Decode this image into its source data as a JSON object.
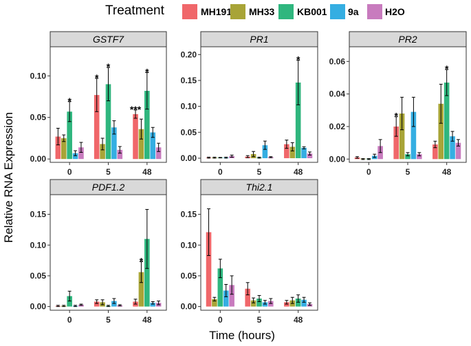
{
  "legend": {
    "title": "Treatment",
    "items": [
      {
        "label": "MH191",
        "color": "#F0676A"
      },
      {
        "label": "MH33",
        "color": "#A8A437"
      },
      {
        "label": "KB001",
        "color": "#2FB67E"
      },
      {
        "label": "9a",
        "color": "#35AEE2"
      },
      {
        "label": "H2O",
        "color": "#C87BBE"
      }
    ]
  },
  "chart_data": {
    "type": "bar",
    "xlabel": "Time (hours)",
    "ylabel": "Relative RNA Expression",
    "categories": [
      "0",
      "5",
      "48"
    ],
    "series_names": [
      "MH191",
      "MH33",
      "KB001",
      "9a",
      "H2O"
    ],
    "panels": [
      {
        "title": "GSTF7",
        "ylim": [
          -0.004,
          0.135
        ],
        "yticks": [
          0,
          0.05,
          0.1
        ],
        "ytick_labels": [
          "0.00",
          "0.05",
          "0.10"
        ],
        "values": [
          [
            0.027,
            0.025,
            0.057,
            0.007,
            0.014
          ],
          [
            0.077,
            0.018,
            0.09,
            0.038,
            0.011
          ],
          [
            0.054,
            0.036,
            0.082,
            0.032,
            0.014
          ]
        ],
        "errors": [
          [
            0.01,
            0.004,
            0.012,
            0.003,
            0.006
          ],
          [
            0.02,
            0.007,
            0.02,
            0.008,
            0.004
          ],
          [
            0.005,
            0.012,
            0.022,
            0.006,
            0.005
          ]
        ],
        "significance": [
          [
            "",
            "",
            "*",
            "",
            ""
          ],
          [
            "*",
            "",
            "*",
            "",
            ""
          ],
          [
            "***",
            "",
            "*",
            "",
            ""
          ]
        ]
      },
      {
        "title": "PR1",
        "ylim": [
          -0.008,
          0.215
        ],
        "yticks": [
          0,
          0.05,
          0.1,
          0.15,
          0.2
        ],
        "ytick_labels": [
          "0.00",
          "0.05",
          "0.10",
          "0.15",
          "0.20"
        ],
        "values": [
          [
            0.001,
            0.001,
            0.001,
            0.001,
            0.004
          ],
          [
            0.003,
            0.008,
            0.001,
            0.025,
            0.002
          ],
          [
            0.027,
            0.022,
            0.146,
            0.02,
            0.009
          ]
        ],
        "errors": [
          [
            0.001,
            0.001,
            0.0005,
            0.001,
            0.002
          ],
          [
            0.002,
            0.005,
            0.001,
            0.008,
            0.001
          ],
          [
            0.008,
            0.008,
            0.043,
            0.002,
            0.003
          ]
        ],
        "significance": [
          [
            "",
            "",
            "",
            "",
            ""
          ],
          [
            "",
            "",
            "",
            "",
            ""
          ],
          [
            "",
            "",
            "*",
            "",
            ""
          ]
        ]
      },
      {
        "title": "PR2",
        "ylim": [
          -0.002,
          0.069
        ],
        "yticks": [
          0,
          0.02,
          0.04,
          0.06
        ],
        "ytick_labels": [
          "0.00",
          "0.02",
          "0.04",
          "0.06"
        ],
        "values": [
          [
            0.001,
            0.0,
            0.0,
            0.002,
            0.008
          ],
          [
            0.02,
            0.028,
            0.003,
            0.029,
            0.003
          ],
          [
            0.009,
            0.034,
            0.047,
            0.014,
            0.01
          ]
        ],
        "errors": [
          [
            0.0005,
            0.0003,
            0.0003,
            0.001,
            0.004
          ],
          [
            0.006,
            0.01,
            0.001,
            0.009,
            0.001
          ],
          [
            0.002,
            0.012,
            0.008,
            0.003,
            0.002
          ]
        ],
        "significance": [
          [
            "",
            "",
            "",
            "",
            ""
          ],
          [
            "*",
            "",
            "",
            "",
            ""
          ],
          [
            "",
            "",
            "*",
            "",
            ""
          ]
        ]
      },
      {
        "title": "PDF1.2",
        "ylim": [
          -0.006,
          0.182
        ],
        "yticks": [
          0,
          0.05,
          0.1,
          0.15
        ],
        "ytick_labels": [
          "0.00",
          "0.05",
          "0.10",
          "0.15"
        ],
        "values": [
          [
            0.001,
            0.001,
            0.017,
            0.001,
            0.003
          ],
          [
            0.008,
            0.007,
            0.001,
            0.009,
            0.002
          ],
          [
            0.008,
            0.056,
            0.11,
            0.006,
            0.006
          ]
        ],
        "errors": [
          [
            0.001,
            0.001,
            0.008,
            0.001,
            0.001
          ],
          [
            0.003,
            0.004,
            0.001,
            0.004,
            0.001
          ],
          [
            0.004,
            0.017,
            0.048,
            0.002,
            0.003
          ]
        ],
        "significance": [
          [
            "",
            "",
            "",
            "",
            ""
          ],
          [
            "",
            "",
            "",
            "",
            ""
          ],
          [
            "",
            "*",
            "",
            "",
            ""
          ]
        ]
      },
      {
        "title": "Thi2.1",
        "ylim": [
          -0.006,
          0.182
        ],
        "yticks": [
          0,
          0.05,
          0.1,
          0.15
        ],
        "ytick_labels": [
          "0.00",
          "0.05",
          "0.10",
          "0.15"
        ],
        "values": [
          [
            0.121,
            0.012,
            0.062,
            0.026,
            0.035
          ],
          [
            0.029,
            0.01,
            0.013,
            0.007,
            0.009
          ],
          [
            0.007,
            0.01,
            0.013,
            0.011,
            0.004
          ]
        ],
        "errors": [
          [
            0.038,
            0.003,
            0.015,
            0.01,
            0.015
          ],
          [
            0.01,
            0.004,
            0.005,
            0.003,
            0.004
          ],
          [
            0.003,
            0.005,
            0.006,
            0.004,
            0.002
          ]
        ],
        "significance": [
          [
            "",
            "",
            "",
            "",
            ""
          ],
          [
            "",
            "",
            "",
            "",
            ""
          ],
          [
            "",
            "",
            "",
            "",
            ""
          ]
        ]
      }
    ]
  }
}
